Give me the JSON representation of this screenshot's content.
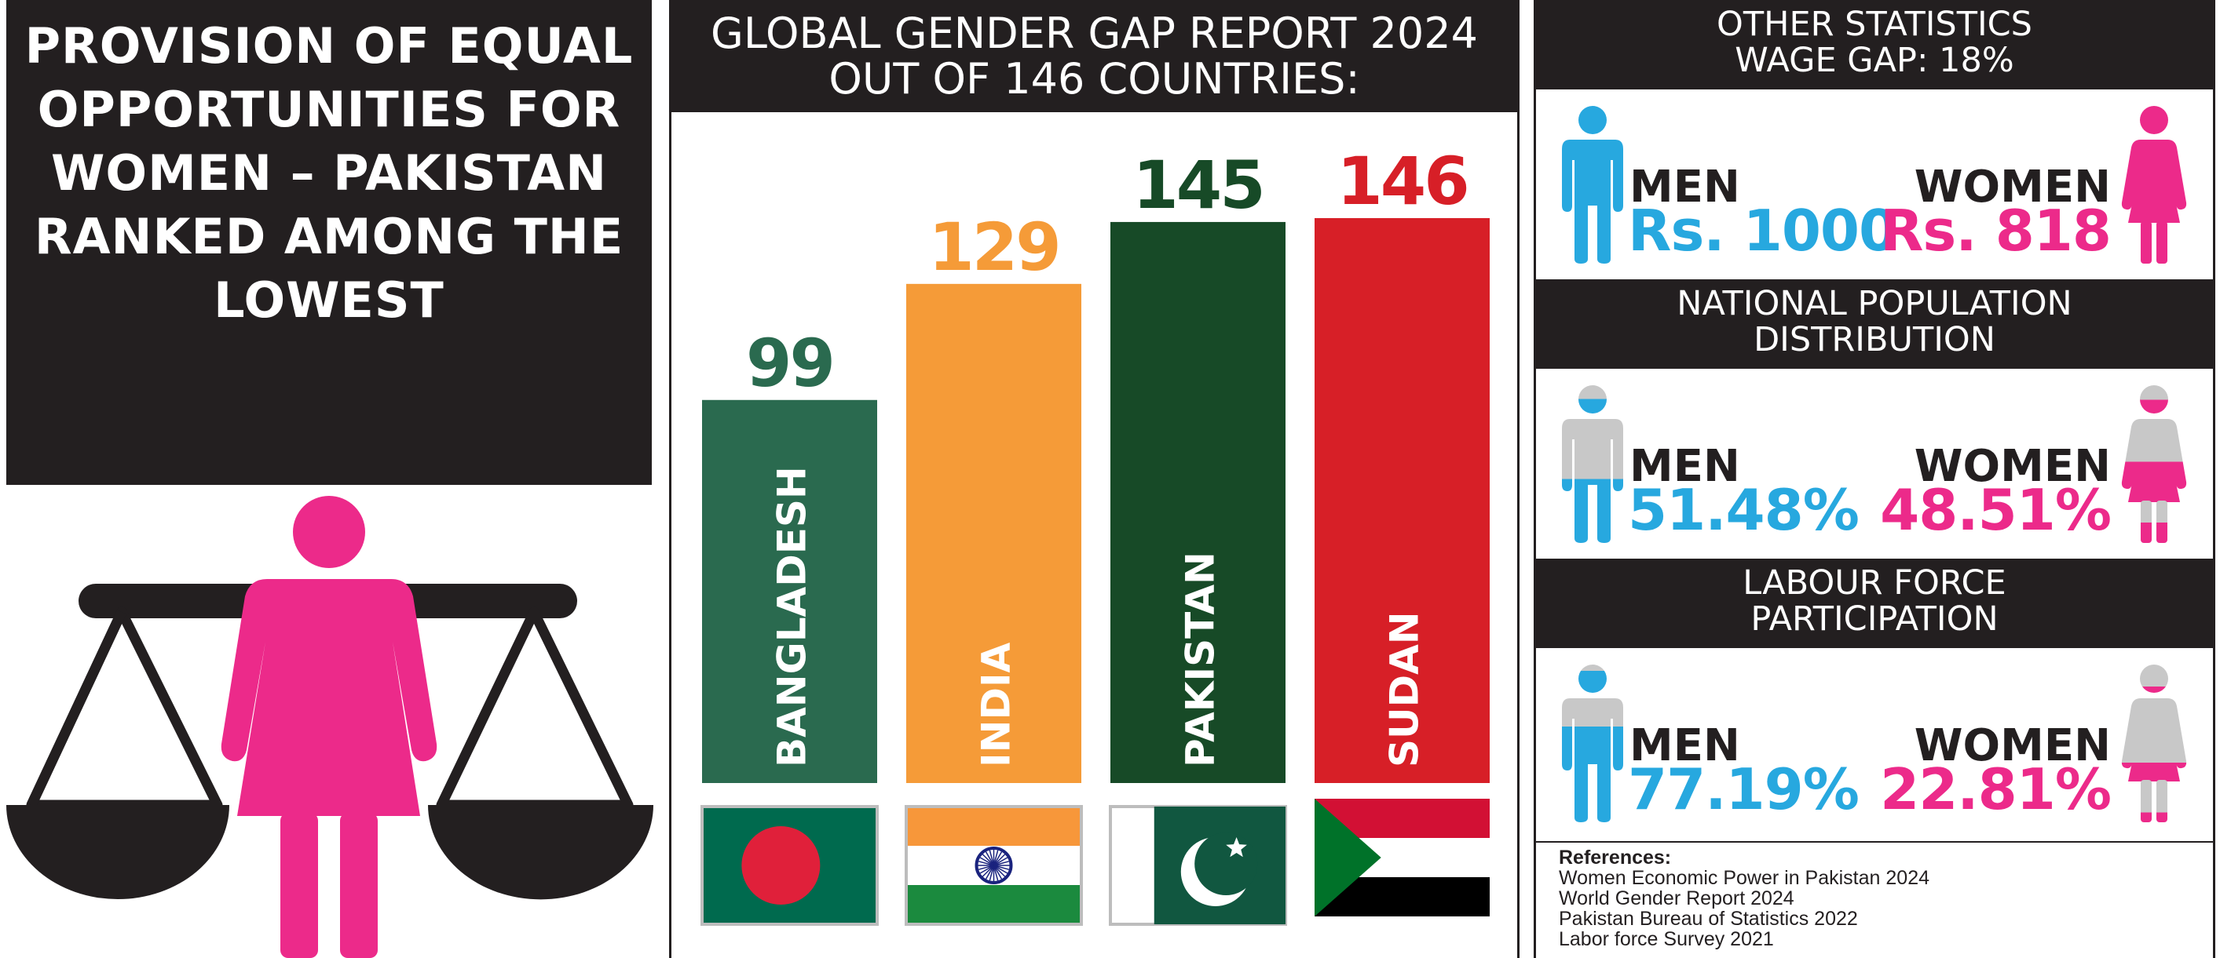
{
  "left": {
    "title": "PROVISION OF EQUAL OPPORTUNITIES FOR WOMEN – PAKISTAN RANKED AMONG THE LOWEST",
    "icons": [
      "woman-icon",
      "balance-scale-icon"
    ],
    "colors": {
      "woman": "#ec2a8a",
      "scale": "#231f20"
    }
  },
  "middle": {
    "header_line1": "GLOBAL GENDER GAP REPORT 2024",
    "header_line2": "OUT OF 146 COUNTRIES:"
  },
  "chart_data": {
    "type": "bar",
    "title": "GLOBAL GENDER GAP REPORT 2024 OUT OF 146 COUNTRIES:",
    "categories": [
      "BANGLADESH",
      "INDIA",
      "PAKISTAN",
      "SUDAN"
    ],
    "values": [
      99,
      129,
      145,
      146
    ],
    "value_labels": [
      "99",
      "129",
      "145",
      "146"
    ],
    "colors": [
      "#2a6a4f",
      "#f59b38",
      "#174a27",
      "#d71f27"
    ],
    "label_colors": [
      "#2a6a4f",
      "#f59b38",
      "#174a27",
      "#d71f27"
    ],
    "flags": [
      "bangladesh-flag-icon",
      "india-flag-icon",
      "pakistan-flag-icon",
      "sudan-flag-icon"
    ],
    "xlabel": "",
    "ylabel": "",
    "ylim": [
      0,
      146
    ],
    "grid": false,
    "legend": "none"
  },
  "right": {
    "colors": {
      "men": "#27a8df",
      "women": "#ec2a8a",
      "neutral": "#c8c8c8",
      "band": "#231f20"
    },
    "sections": [
      {
        "heading_line1": "OTHER STATISTICS",
        "heading_line2": "WAGE GAP: 18%",
        "men_label": "MEN",
        "men_value": "Rs. 1000",
        "women_label": "WOMEN",
        "women_value": "Rs. 818",
        "men_fill": 1.0,
        "women_fill": 1.0
      },
      {
        "heading_line1": "NATIONAL POPULATION",
        "heading_line2": "DISTRIBUTION",
        "men_label": "MEN",
        "men_value": "51.48%",
        "women_label": "WOMEN",
        "women_value": "48.51%",
        "men_fill": 0.5148,
        "women_fill": 0.4851
      },
      {
        "heading_line1": "LABOUR FORCE",
        "heading_line2": "PARTICIPATION",
        "men_label": "MEN",
        "men_value": "77.19%",
        "women_label": "WOMEN",
        "women_value": "22.81%",
        "men_fill": 0.7719,
        "women_fill": 0.2281
      }
    ],
    "references": {
      "title": "References:",
      "items": [
        "Women Economic Power in Pakistan 2024",
        "World Gender Report 2024",
        "Pakistan Bureau of Statistics 2022",
        "Labor force Survey 2021"
      ]
    }
  }
}
